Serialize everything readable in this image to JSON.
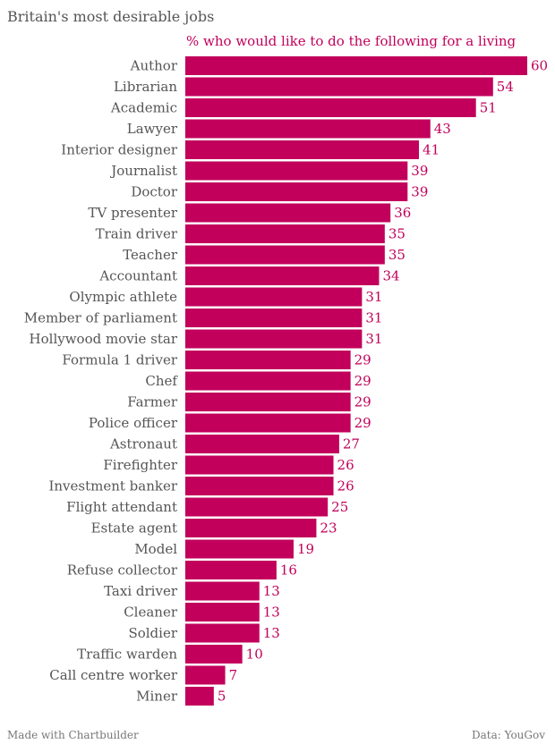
{
  "chart_data": {
    "type": "bar",
    "orientation": "horizontal",
    "title": "Britain's most desirable jobs",
    "subtitle": "% who would like to do the following for a living",
    "categories": [
      "Author",
      "Librarian",
      "Academic",
      "Lawyer",
      "Interior designer",
      "Journalist",
      "Doctor",
      "TV presenter",
      "Train driver",
      "Teacher",
      "Accountant",
      "Olympic athlete",
      "Member of parliament",
      "Hollywood movie star",
      "Formula 1 driver",
      "Chef",
      "Farmer",
      "Police officer",
      "Astronaut",
      "Firefighter",
      "Investment banker",
      "Flight attendant",
      "Estate agent",
      "Model",
      "Refuse collector",
      "Taxi driver",
      "Cleaner",
      "Soldier",
      "Traffic warden",
      "Call centre worker",
      "Miner"
    ],
    "values": [
      60,
      54,
      51,
      43,
      41,
      39,
      39,
      36,
      35,
      35,
      34,
      31,
      31,
      31,
      29,
      29,
      29,
      29,
      27,
      26,
      26,
      25,
      23,
      19,
      16,
      13,
      13,
      13,
      10,
      7,
      5
    ],
    "xlim": [
      0,
      60
    ],
    "xlabel": "",
    "ylabel": "",
    "grid": false,
    "bar_color": "#c2005c"
  },
  "footer": {
    "left": "Made with Chartbuilder",
    "right": "Data: YouGov"
  }
}
